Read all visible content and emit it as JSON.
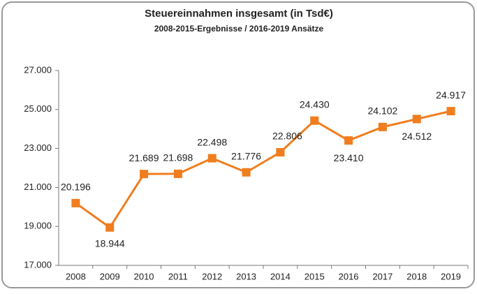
{
  "chart_data": {
    "type": "line",
    "title": "Steuereinnahmen insgesamt (in Tsd€)",
    "subtitle": "2008-2015-Ergebnisse / 2016-2019 Ansätze",
    "categories": [
      "2008",
      "2009",
      "2010",
      "2011",
      "2012",
      "2013",
      "2014",
      "2015",
      "2016",
      "2017",
      "2018",
      "2019"
    ],
    "series": [
      {
        "name": "Steuereinnahmen",
        "color": "#f07d1e",
        "values": [
          20196,
          18944,
          21689,
          21698,
          22498,
          21776,
          22806,
          24430,
          23410,
          24102,
          24512,
          24917
        ],
        "value_labels": [
          "20.196",
          "18.944",
          "21.689",
          "21.698",
          "22.498",
          "21.776",
          "22.806",
          "24.430",
          "23.410",
          "24.102",
          "24.512",
          "24.917"
        ]
      }
    ],
    "ylim": [
      17000,
      27000
    ],
    "yticks": [
      {
        "value": 17000,
        "label": "17.000"
      },
      {
        "value": 19000,
        "label": "19.000"
      },
      {
        "value": 21000,
        "label": "21.000"
      },
      {
        "value": 23000,
        "label": "23.000"
      },
      {
        "value": 25000,
        "label": "25.000"
      },
      {
        "value": 27000,
        "label": "27.000"
      }
    ],
    "grid": false
  }
}
